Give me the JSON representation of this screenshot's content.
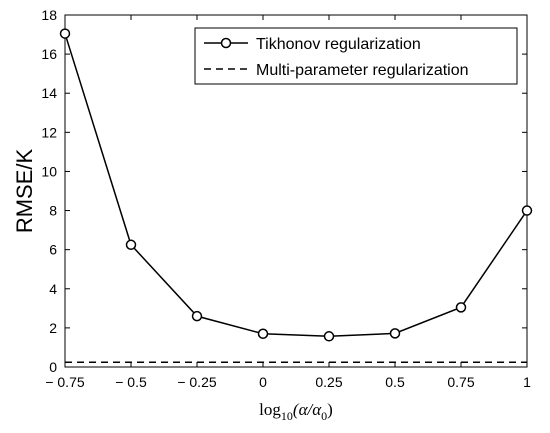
{
  "chart_data": {
    "type": "line",
    "title": "",
    "xlabel": "log10(α/α0)",
    "xlabel_parts": {
      "pre": "log",
      "sub": "10",
      "mid": "(α/α",
      "sub2": "0",
      "post": ")"
    },
    "ylabel": "RMSE/K",
    "xlim": [
      -0.75,
      1
    ],
    "ylim": [
      0,
      18
    ],
    "x_ticks": [
      -0.75,
      -0.5,
      -0.25,
      0,
      0.25,
      0.5,
      0.75,
      1
    ],
    "x_tick_labels": [
      "− 0.75",
      "− 0.5",
      "− 0.25",
      "0",
      "0.25",
      "0.5",
      "0.75",
      "1"
    ],
    "y_ticks": [
      0,
      2,
      4,
      6,
      8,
      10,
      12,
      14,
      16,
      18
    ],
    "y_tick_labels": [
      "0",
      "2",
      "4",
      "6",
      "8",
      "10",
      "12",
      "14",
      "16",
      "18"
    ],
    "grid": false,
    "legend_position": "top-right",
    "series": [
      {
        "name": "Tikhonov regularization",
        "style": "solid-circle-markers",
        "color": "#000000",
        "x": [
          -0.75,
          -0.5,
          -0.25,
          0,
          0.25,
          0.5,
          0.75,
          1
        ],
        "y": [
          17.05,
          6.25,
          2.6,
          1.7,
          1.57,
          1.72,
          3.05,
          8.0
        ]
      },
      {
        "name": "Multi-parameter regularization",
        "style": "dashed",
        "color": "#000000",
        "x": [
          -0.75,
          1
        ],
        "y": [
          0.24,
          0.24
        ]
      }
    ]
  }
}
